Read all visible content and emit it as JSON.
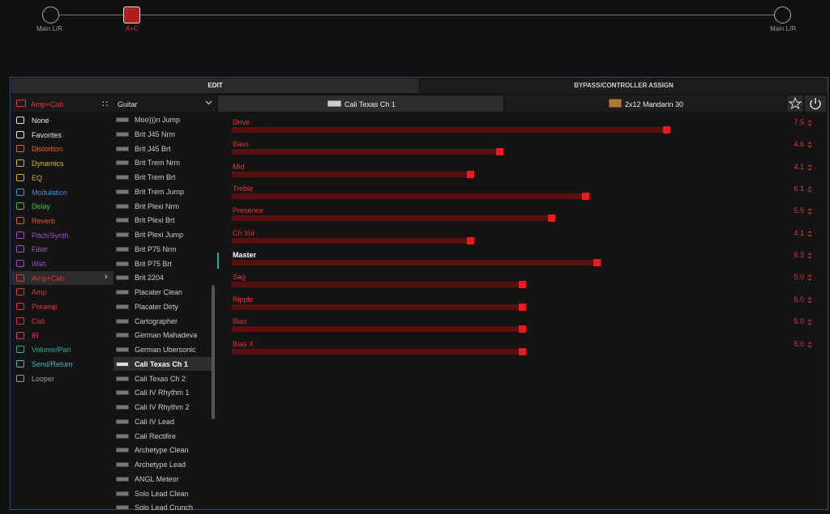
{
  "signal_path": {
    "input": "Main L/R",
    "block": "A+C",
    "output": "Main L/R"
  },
  "tabs": [
    "EDIT",
    "BYPASS/CONTROLLER ASSIGN"
  ],
  "category_header": "Amp+Cab",
  "categories": [
    {
      "name": "None",
      "color": "#e6e6e6"
    },
    {
      "name": "Favorites",
      "color": "#e6e6e6"
    },
    {
      "name": "Distortion",
      "color": "#e0642c"
    },
    {
      "name": "Dynamics",
      "color": "#d8b422"
    },
    {
      "name": "EQ",
      "color": "#d0aa2a"
    },
    {
      "name": "Modulation",
      "color": "#3f8fdc"
    },
    {
      "name": "Delay",
      "color": "#3fc23f"
    },
    {
      "name": "Reverb",
      "color": "#e2543a"
    },
    {
      "name": "Pitch/Synth",
      "color": "#a946d6"
    },
    {
      "name": "Filter",
      "color": "#a353c6"
    },
    {
      "name": "Wah",
      "color": "#a743c6"
    },
    {
      "name": "Amp+Cab",
      "color": "#e23434"
    },
    {
      "name": "Amp",
      "color": "#e23434"
    },
    {
      "name": "Preamp",
      "color": "#e23434"
    },
    {
      "name": "Cab",
      "color": "#e23434"
    },
    {
      "name": "IR",
      "color": "#d83a78"
    },
    {
      "name": "Volume/Pan",
      "color": "#34a6a6"
    },
    {
      "name": "Send/Return",
      "color": "#45b6c6"
    },
    {
      "name": "Looper",
      "color": "#9a9a9a"
    }
  ],
  "selected_category": 11,
  "model_filter": "Guitar",
  "models": [
    "Moo)))n Jump",
    "Brit J45 Nrm",
    "Brit J45 Brt",
    "Brit Trem Nrm",
    "Brit Trem Brt",
    "Brit Trem Jump",
    "Brit Plexi Nrm",
    "Brit Plexi Brt",
    "Brit Plexi Jump",
    "Brit P75 Nrm",
    "Brit P75 Brt",
    "Brit 2204",
    "Placater Clean",
    "Placater Dirty",
    "Cartographer",
    "German Mahadeva",
    "German Ubersonic",
    "Cali Texas Ch 1",
    "Cali Texas Ch 2",
    "Cali IV Rhythm 1",
    "Cali IV Rhythm 2",
    "Cali IV Lead",
    "Cali Rectifire",
    "Archetype Clean",
    "Archetype Lead",
    "ANGL Meteor",
    "Solo Lead Clean",
    "Solo Lead Crunch"
  ],
  "selected_model": 17,
  "block_tabs": [
    "Cali Texas Ch 1",
    "2x12 Mandarin 30"
  ],
  "param_range": [
    0,
    10
  ],
  "selected_param": 6,
  "params": [
    {
      "name": "Drive",
      "value": 7.5
    },
    {
      "name": "Bass",
      "value": 4.6
    },
    {
      "name": "Mid",
      "value": 4.1
    },
    {
      "name": "Treble",
      "value": 6.1
    },
    {
      "name": "Presence",
      "value": 5.5
    },
    {
      "name": "Ch Vol",
      "value": 4.1
    },
    {
      "name": "Master",
      "value": 6.3
    },
    {
      "name": "Sag",
      "value": 5,
      "label": "5.0"
    },
    {
      "name": "Ripple",
      "value": 5,
      "label": "5.0"
    },
    {
      "name": "Bias",
      "value": 5,
      "label": "5.0"
    },
    {
      "name": "Bias X",
      "value": 5,
      "label": "5.0"
    }
  ]
}
